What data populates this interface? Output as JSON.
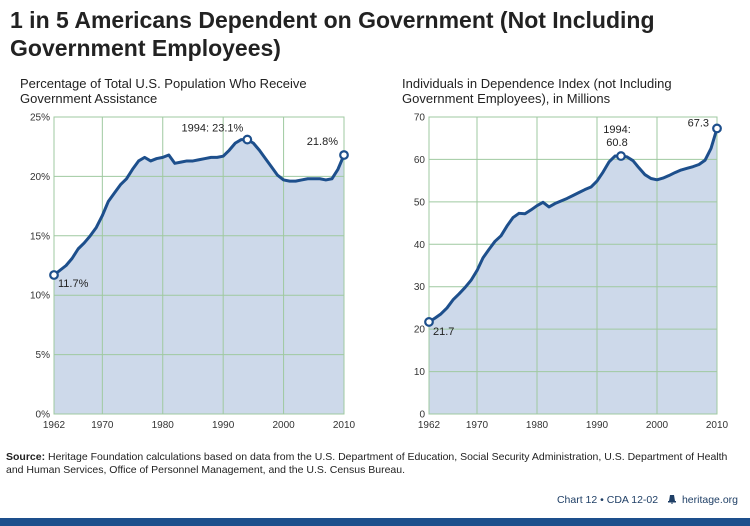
{
  "header": {
    "title": "1 in 5 Americans Dependent on Government (Not Including Government Employees)"
  },
  "chart_data": [
    {
      "type": "area",
      "title": "Percentage of Total U.S. Population Who Receive Government Assistance",
      "xlabel": "",
      "ylabel": "",
      "xlim": [
        1962,
        2010
      ],
      "ylim": [
        0,
        25
      ],
      "x_ticks": [
        "1962",
        "1970",
        "1980",
        "1990",
        "2000",
        "2010"
      ],
      "y_ticks": [
        "0%",
        "5%",
        "10%",
        "15%",
        "20%",
        "25%"
      ],
      "grid": true,
      "colors": {
        "line": "#1d4f8c",
        "fill": "#cdd9ea",
        "grid": "#9fc9a0"
      },
      "series": [
        {
          "x": [
            1962,
            1963,
            1964,
            1965,
            1966,
            1967,
            1968,
            1969,
            1970,
            1971,
            1972,
            1973,
            1974,
            1975,
            1976,
            1977,
            1978,
            1979,
            1980,
            1981,
            1982,
            1983,
            1984,
            1985,
            1986,
            1987,
            1988,
            1989,
            1990,
            1991,
            1992,
            1993,
            1994,
            1995,
            1996,
            1997,
            1998,
            1999,
            2000,
            2001,
            2002,
            2003,
            2004,
            2005,
            2006,
            2007,
            2008,
            2009,
            2010
          ],
          "values": [
            11.7,
            12.1,
            12.5,
            13.1,
            13.9,
            14.4,
            15.0,
            15.7,
            16.7,
            17.9,
            18.6,
            19.3,
            19.8,
            20.6,
            21.3,
            21.6,
            21.3,
            21.5,
            21.6,
            21.8,
            21.1,
            21.2,
            21.3,
            21.3,
            21.4,
            21.5,
            21.6,
            21.6,
            21.7,
            22.2,
            22.8,
            23.1,
            23.1,
            22.8,
            22.2,
            21.5,
            20.8,
            20.1,
            19.7,
            19.6,
            19.6,
            19.7,
            19.8,
            19.8,
            19.8,
            19.7,
            19.8,
            20.6,
            21.8
          ]
        }
      ],
      "annotations": [
        {
          "x": 1962,
          "y": 11.7,
          "label": "11.7%"
        },
        {
          "x": 1994,
          "y": 23.1,
          "label": "1994: 23.1%"
        },
        {
          "x": 2010,
          "y": 21.8,
          "label": "21.8%"
        }
      ]
    },
    {
      "type": "area",
      "title": "Individuals in Dependence Index (not Including Government Employees), in Millions",
      "xlabel": "",
      "ylabel": "",
      "xlim": [
        1962,
        2010
      ],
      "ylim": [
        0,
        70
      ],
      "x_ticks": [
        "1962",
        "1970",
        "1980",
        "1990",
        "2000",
        "2010"
      ],
      "y_ticks": [
        "0",
        "10",
        "20",
        "30",
        "40",
        "50",
        "60",
        "70"
      ],
      "grid": true,
      "colors": {
        "line": "#1d4f8c",
        "fill": "#cdd9ea",
        "grid": "#9fc9a0"
      },
      "series": [
        {
          "x": [
            1962,
            1963,
            1964,
            1965,
            1966,
            1967,
            1968,
            1969,
            1970,
            1971,
            1972,
            1973,
            1974,
            1975,
            1976,
            1977,
            1978,
            1979,
            1980,
            1981,
            1982,
            1983,
            1984,
            1985,
            1986,
            1987,
            1988,
            1989,
            1990,
            1991,
            1992,
            1993,
            1994,
            1995,
            1996,
            1997,
            1998,
            1999,
            2000,
            2001,
            2002,
            2003,
            2004,
            2005,
            2006,
            2007,
            2008,
            2009,
            2010
          ],
          "values": [
            21.7,
            22.6,
            23.6,
            25.0,
            26.9,
            28.3,
            29.8,
            31.5,
            33.8,
            36.8,
            38.8,
            40.7,
            42.0,
            44.3,
            46.3,
            47.3,
            47.2,
            48.1,
            49.1,
            49.9,
            48.8,
            49.6,
            50.2,
            50.8,
            51.5,
            52.2,
            52.9,
            53.5,
            54.9,
            57.0,
            59.4,
            60.8,
            60.8,
            60.6,
            59.7,
            58.0,
            56.4,
            55.5,
            55.2,
            55.6,
            56.2,
            56.9,
            57.5,
            57.9,
            58.3,
            58.8,
            59.8,
            62.6,
            67.3
          ]
        }
      ],
      "annotations": [
        {
          "x": 1962,
          "y": 21.7,
          "label": "21.7"
        },
        {
          "x": 1994,
          "y": 60.8,
          "label": "1994:\n60.8"
        },
        {
          "x": 2010,
          "y": 67.3,
          "label": "67.3"
        }
      ]
    }
  ],
  "source": {
    "label": "Source:",
    "text": "Heritage Foundation calculations based on data from the U.S. Department of Education, Social Security Administration, U.S. Department of Health and Human Services, Office of Personnel Management, and the U.S. Census Bureau."
  },
  "footer": {
    "chart_id": "Chart 12 • CDA 12-02",
    "site": "heritage.org"
  }
}
